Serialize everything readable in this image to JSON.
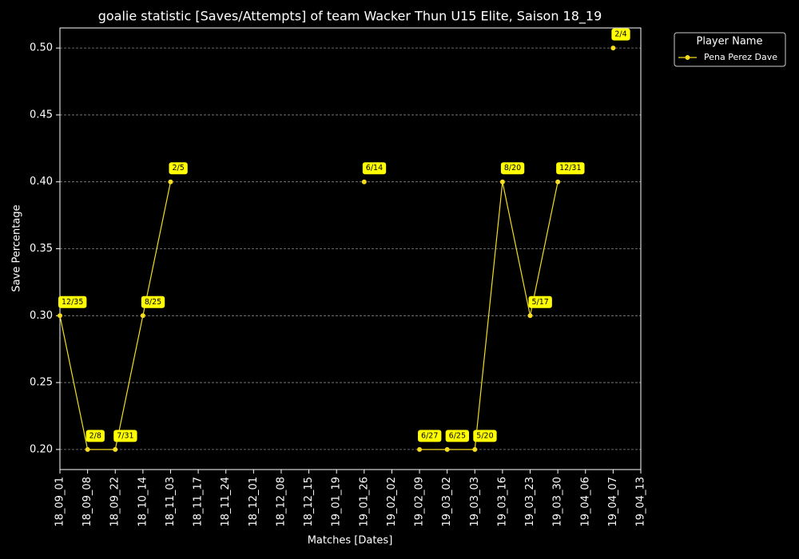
{
  "chart_data": {
    "type": "line",
    "title": "goalie statistic [Saves/Attempts] of team Wacker Thun U15 Elite, Saison 18_19",
    "x_label": "Matches [Dates]",
    "y_label": "Save Percentage",
    "categories": [
      "18_09_01",
      "18_09_08",
      "18_09_22",
      "18_10_14",
      "18_11_03",
      "18_11_17",
      "18_11_24",
      "18_12_01",
      "18_12_08",
      "18_12_15",
      "19_01_19",
      "19_01_26",
      "19_02_02",
      "19_02_09",
      "19_03_02",
      "19_03_03",
      "19_03_16",
      "19_03_23",
      "19_03_30",
      "19_04_06",
      "19_04_07",
      "19_04_13"
    ],
    "series": [
      {
        "name": "Pena Perez Dave",
        "color": "#f5dc1e",
        "values": [
          0.3,
          0.2,
          0.2,
          0.3,
          0.4,
          null,
          null,
          null,
          null,
          null,
          null,
          0.4,
          null,
          0.2,
          0.2,
          0.2,
          0.4,
          0.3,
          0.4,
          null,
          0.5,
          null
        ],
        "value_labels": [
          "12/35",
          "2/8",
          "7/31",
          "8/25",
          "2/5",
          null,
          null,
          null,
          null,
          null,
          null,
          "6/14",
          null,
          "6/27",
          "6/25",
          "5/20",
          "8/20",
          "5/17",
          "12/31",
          null,
          "2/4",
          null
        ]
      }
    ],
    "ylim": [
      0.185,
      0.515
    ],
    "yticks": [
      {
        "value": 0.2,
        "label": "0.20"
      },
      {
        "value": 0.25,
        "label": "0.25"
      },
      {
        "value": 0.3,
        "label": "0.30"
      },
      {
        "value": 0.35,
        "label": "0.35"
      },
      {
        "value": 0.4,
        "label": "0.40"
      },
      {
        "value": 0.45,
        "label": "0.45"
      },
      {
        "value": 0.5,
        "label": "0.50"
      }
    ],
    "grid": true,
    "legend_title": "Player Name",
    "legend_position": "outside-upper-right"
  }
}
